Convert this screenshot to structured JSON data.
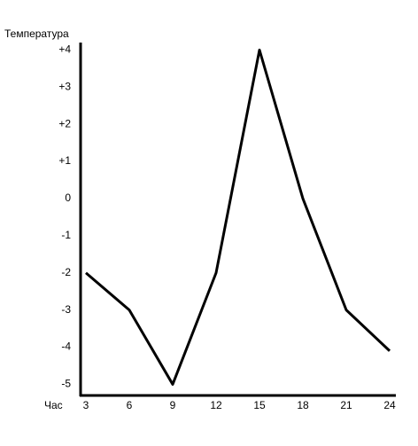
{
  "chart_data": {
    "type": "line",
    "y_label": "Температура",
    "x_label": "Час",
    "x": [
      3,
      6,
      9,
      12,
      15,
      18,
      21,
      24
    ],
    "series": [
      {
        "name": null,
        "color": "#000000",
        "values": [
          -2,
          -3,
          -5,
          -2,
          4,
          0,
          -3,
          -4.1
        ]
      }
    ],
    "xlim": [
      3,
      24
    ],
    "xticks": [
      3,
      6,
      9,
      12,
      15,
      18,
      21,
      24
    ],
    "ylim": [
      -5.3,
      4.2
    ],
    "yticks": [
      {
        "value": 4,
        "label": "+4"
      },
      {
        "value": 3,
        "label": "+3"
      },
      {
        "value": 2,
        "label": "+2"
      },
      {
        "value": 1,
        "label": "+1"
      },
      0,
      -1,
      -2,
      -3,
      -4,
      -5
    ],
    "grid": false
  }
}
